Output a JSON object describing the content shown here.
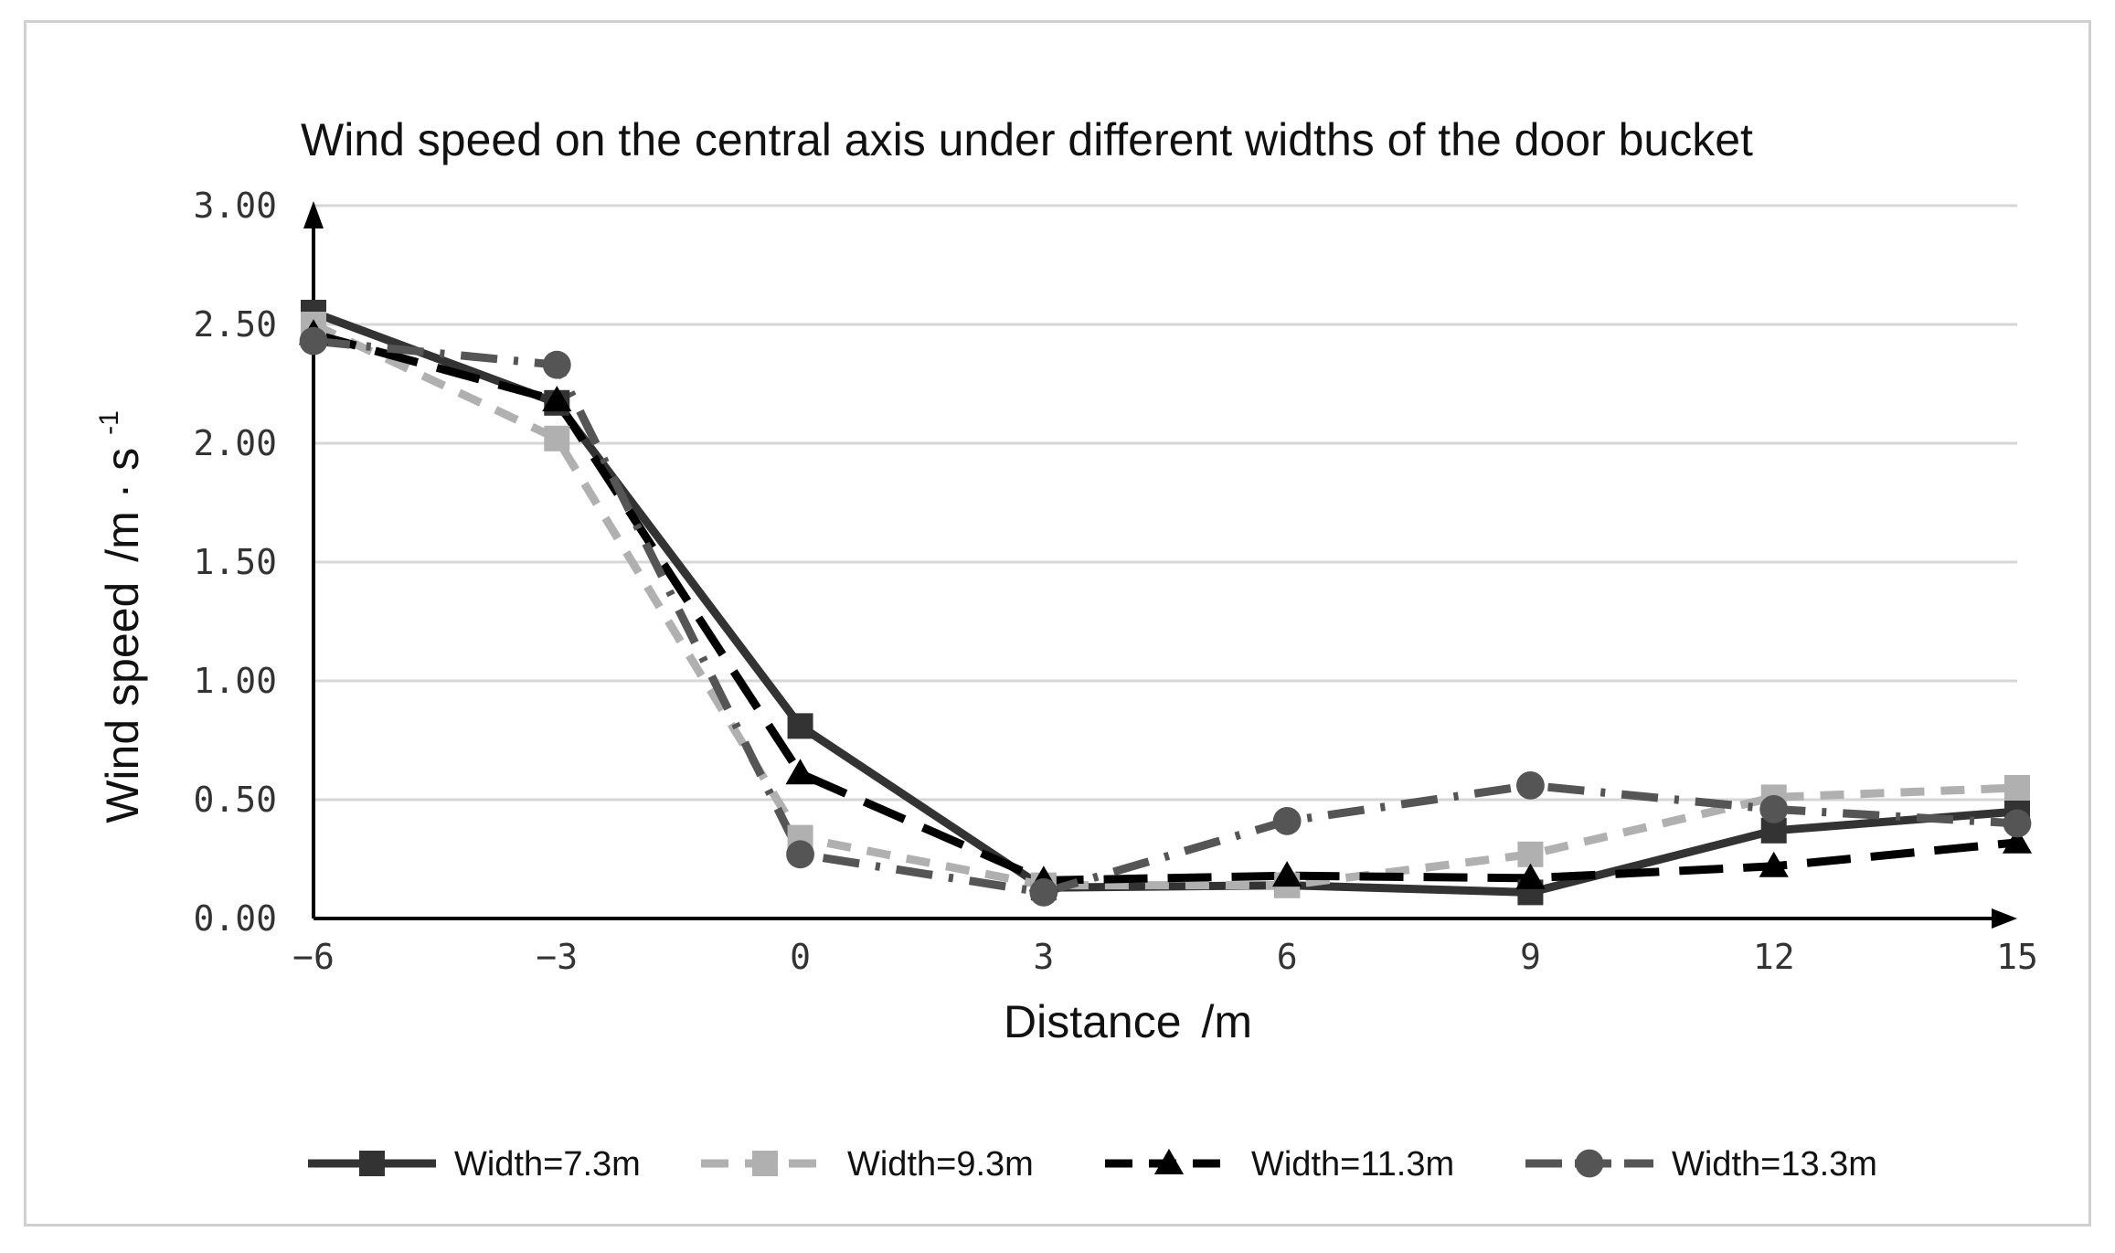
{
  "chart_data": {
    "type": "line",
    "title": "Wind speed on the central axis under different widths of the door bucket",
    "xlabel": "Distance",
    "xlabel_unit": "/m",
    "ylabel": "Wind speed",
    "ylabel_unit": "/m · s",
    "ylabel_unit_sup": "-1",
    "x": [
      -6,
      -3,
      0,
      3,
      6,
      9,
      12,
      15
    ],
    "x_tick_labels": [
      "−6",
      "−3",
      "0",
      "3",
      "6",
      "9",
      "12",
      "15"
    ],
    "y_tick_labels": [
      "0.00",
      "0.50",
      "1.00",
      "1.50",
      "2.00",
      "2.50",
      "3.00"
    ],
    "xlim": [
      -6,
      15
    ],
    "ylim": [
      0,
      3
    ],
    "grid": "horizontal",
    "legend_position": "bottom",
    "series": [
      {
        "name": "Width=7.3m",
        "values": [
          2.55,
          2.17,
          0.81,
          0.13,
          0.14,
          0.11,
          0.37,
          0.45
        ],
        "color": "#333333",
        "dash": "solid",
        "marker": "square"
      },
      {
        "name": "Width=9.3m",
        "values": [
          2.5,
          2.02,
          0.34,
          0.14,
          0.14,
          0.27,
          0.51,
          0.55
        ],
        "color": "#b0b0b0",
        "dash": "dashed",
        "marker": "square"
      },
      {
        "name": "Width=11.3m",
        "values": [
          2.46,
          2.18,
          0.61,
          0.16,
          0.18,
          0.17,
          0.22,
          0.32
        ],
        "color": "#000000",
        "dash": "long-dash",
        "marker": "triangle"
      },
      {
        "name": "Width=13.3m",
        "values": [
          2.43,
          2.33,
          0.27,
          0.11,
          0.41,
          0.56,
          0.46,
          0.4
        ],
        "color": "#555555",
        "dash": "dash-dot",
        "marker": "circle"
      }
    ]
  }
}
